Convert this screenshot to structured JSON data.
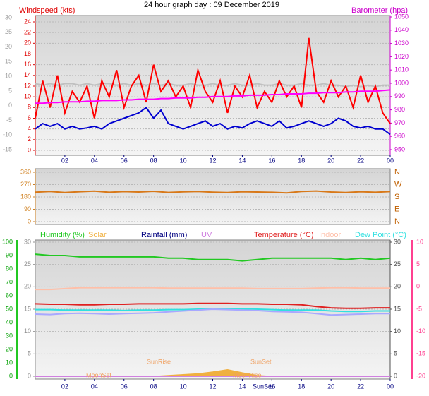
{
  "chart_data": [
    {
      "type": "line",
      "title": "24 hour graph day : 09 December 2019",
      "ylabel": "Windspeed (kts)",
      "y2label": "Barometer (hpa)",
      "x": [
        0,
        0.5,
        1,
        1.5,
        2,
        2.5,
        3,
        3.5,
        4,
        4.5,
        5,
        5.5,
        6,
        6.5,
        7,
        7.5,
        8,
        8.5,
        9,
        9.5,
        10,
        10.5,
        11,
        11.5,
        12,
        12.5,
        13,
        13.5,
        14,
        14.5,
        15,
        15.5,
        16,
        16.5,
        17,
        17.5,
        18,
        18.5,
        19,
        19.5,
        20,
        20.5,
        21,
        21.5,
        22,
        22.5,
        23,
        23.5,
        24
      ],
      "xlim": [
        0,
        24
      ],
      "xticks": [
        {
          "value": 2,
          "label": "02"
        },
        {
          "value": 4,
          "label": "04"
        },
        {
          "value": 6,
          "label": "06"
        },
        {
          "value": 8,
          "label": "08"
        },
        10,
        12,
        14,
        16,
        18,
        20,
        22,
        {
          "value": 24,
          "label": "00"
        }
      ],
      "ylim": [
        0,
        24
      ],
      "yticks": [
        0,
        2,
        4,
        6,
        8,
        10,
        12,
        14,
        16,
        18,
        20,
        22,
        24
      ],
      "y2lim": [
        950,
        1050
      ],
      "y2ticks": [
        950,
        960,
        970,
        980,
        990,
        1000,
        1010,
        1020,
        1030,
        1040,
        1050
      ],
      "y3lim": [
        -15,
        30
      ],
      "y3ticks": [
        -15,
        -10,
        -5,
        0,
        5,
        10,
        15,
        20,
        25,
        30
      ],
      "grid": true,
      "series": [
        {
          "color": "#c0c0c0",
          "axis": "y3",
          "values": [
            7.5,
            7,
            7.5,
            7,
            7.5,
            7.5,
            7,
            7.5,
            7,
            7.5,
            7.5,
            7,
            7.5,
            7,
            7.5,
            7,
            7.5,
            7,
            7.5,
            7,
            7,
            7.5,
            7,
            7,
            7.5,
            7,
            7,
            7.5,
            7,
            7,
            7.5,
            7,
            7,
            7.5,
            7,
            7,
            7.5,
            7,
            7,
            7.5,
            7,
            7,
            6.5,
            7,
            6.5,
            7,
            6.5,
            7,
            7
          ]
        },
        {
          "color": "#ff0000",
          "values": [
            6,
            13,
            8,
            14,
            7,
            11,
            9,
            12,
            6,
            13,
            10,
            15,
            8,
            12,
            14,
            9,
            16,
            11,
            13,
            10,
            12,
            8,
            15,
            11,
            9,
            13,
            7,
            12,
            10,
            14,
            8,
            11,
            9,
            13,
            10,
            12,
            8,
            21,
            11,
            9,
            13,
            10,
            12,
            8,
            14,
            9,
            12,
            7,
            5
          ]
        },
        {
          "color": "#ff00ff",
          "axis": "y2",
          "values": [
            985,
            985,
            985.5,
            985.5,
            986,
            986,
            986,
            986.5,
            986.5,
            987,
            987,
            987,
            987.5,
            987.5,
            988,
            988,
            988,
            988.5,
            988.5,
            989,
            989,
            989,
            989.5,
            989.5,
            990,
            990,
            990,
            990.5,
            990.5,
            991,
            991,
            991,
            991.5,
            991.5,
            992,
            992,
            992,
            992.5,
            992.5,
            993,
            993,
            993,
            993.5,
            993.5,
            994,
            994,
            994,
            994.5,
            995
          ]
        },
        {
          "color": "#0000d0",
          "values": [
            4,
            5,
            4.5,
            5,
            4,
            4.5,
            4,
            4.2,
            4.5,
            4,
            5,
            5.5,
            6,
            6.5,
            7,
            8,
            6,
            7.5,
            5,
            4.5,
            4,
            4.5,
            5,
            5.5,
            4.5,
            5,
            4,
            4.5,
            4.2,
            5,
            5.5,
            5,
            4.5,
            5.5,
            4.2,
            4.5,
            5,
            5.5,
            5,
            4.5,
            5,
            6,
            5.5,
            4.5,
            4.2,
            4.5,
            4,
            4,
            3
          ]
        }
      ]
    },
    {
      "type": "line",
      "x": [
        0,
        1,
        2,
        3,
        4,
        5,
        6,
        7,
        8,
        9,
        10,
        11,
        12,
        13,
        14,
        15,
        16,
        17,
        18,
        19,
        20,
        21,
        22,
        23,
        24
      ],
      "xlim": [
        0,
        24
      ],
      "ylim": [
        0,
        360
      ],
      "yticks": [
        0,
        90,
        180,
        270,
        360
      ],
      "y2lim": [
        0,
        360
      ],
      "y2ticks": [
        {
          "value": 0,
          "label": "N"
        },
        {
          "value": 90,
          "label": "E"
        },
        {
          "value": 180,
          "label": "S"
        },
        {
          "value": 270,
          "label": "W"
        },
        {
          "value": 360,
          "label": "N"
        }
      ],
      "grid": true,
      "series": [
        {
          "color": "#d87818",
          "values": [
            215,
            220,
            212,
            218,
            222,
            214,
            219,
            216,
            221,
            213,
            217,
            220,
            215,
            212,
            218,
            216,
            214,
            210,
            220,
            223,
            216,
            212,
            218,
            214,
            219
          ]
        }
      ]
    },
    {
      "type": "line",
      "x": [
        0,
        1,
        2,
        3,
        4,
        5,
        6,
        7,
        8,
        9,
        10,
        11,
        12,
        13,
        14,
        15,
        16,
        17,
        18,
        19,
        20,
        21,
        22,
        23,
        24
      ],
      "xlim": [
        0,
        24
      ],
      "xticks": [
        {
          "value": 2,
          "label": "02"
        },
        {
          "value": 4,
          "label": "04"
        },
        {
          "value": 6,
          "label": "06"
        },
        {
          "value": 8,
          "label": "08"
        },
        10,
        12,
        14,
        16,
        18,
        20,
        22,
        {
          "value": 24,
          "label": "00"
        }
      ],
      "ylim": [
        0,
        100
      ],
      "yticks": [
        0,
        10,
        20,
        30,
        40,
        50,
        60,
        70,
        80,
        90,
        100
      ],
      "y2lim": [
        0,
        30
      ],
      "y2ticks": [
        0,
        5,
        10,
        15,
        20,
        25,
        30
      ],
      "y3lim": [
        0,
        30
      ],
      "y3ticks": [
        0,
        5,
        10,
        15,
        20,
        25,
        30
      ],
      "y4lim": [
        -20,
        10
      ],
      "y4ticks": [
        -20,
        -15,
        -10,
        -5,
        0,
        5,
        10
      ],
      "grid": true,
      "annotations": [
        "SunRise",
        "SunSet",
        "MoonSet",
        "MoonRise",
        "SunSet"
      ],
      "series": [
        {
          "name": "Humidity (%)",
          "color": "#22c822",
          "values": [
            91,
            90,
            90,
            89,
            89,
            89,
            89,
            89,
            89,
            88,
            88,
            87,
            87,
            87,
            86,
            87,
            88,
            88,
            88,
            88,
            88,
            87,
            88,
            87,
            88
          ]
        },
        {
          "name": "Solar",
          "color": "#f0b040",
          "axis": "y3",
          "area": true,
          "values": [
            0,
            0,
            0,
            0,
            0,
            0,
            0,
            0,
            0,
            0.2,
            0.4,
            0.6,
            1,
            1.5,
            0.8,
            0.2,
            0,
            0,
            0,
            0,
            0,
            0,
            0,
            0,
            0
          ]
        },
        {
          "name": "Rainfall (mm)",
          "color": "#000080",
          "axis": "y2",
          "values": [
            0,
            0,
            0,
            0,
            0,
            0,
            0,
            0,
            0,
            0,
            0,
            0,
            0,
            0,
            0,
            0,
            0,
            0,
            0,
            0,
            0,
            0,
            0,
            0,
            0
          ]
        },
        {
          "name": "UV",
          "color": "#d080e0",
          "axis": "y2",
          "values": [
            0,
            0,
            0,
            0,
            0,
            0,
            0,
            0,
            0,
            0,
            0,
            0,
            0,
            0,
            0,
            0,
            0,
            0,
            0,
            0,
            0,
            0,
            0,
            0,
            0
          ]
        },
        {
          "name": "Temperature (°C)",
          "color": "#e02020",
          "axis": "y3",
          "values": [
            16.2,
            16.1,
            16.1,
            16,
            16,
            16.1,
            16.1,
            16.2,
            16.2,
            16.2,
            16.2,
            16.3,
            16.3,
            16.3,
            16.2,
            16.2,
            16.1,
            16.1,
            16,
            15.6,
            15.3,
            15.2,
            15.2,
            15.3,
            15.3
          ]
        },
        {
          "name": "Indoor",
          "color": "#ffbfa8",
          "axis": "y3",
          "values": [
            19.4,
            19.4,
            19.6,
            19.8,
            19.8,
            19.8,
            19.8,
            19.8,
            19.8,
            19.7,
            19.7,
            19.7,
            19.7,
            19.7,
            19.7,
            19.6,
            19.6,
            19.6,
            19.6,
            19.7,
            19.8,
            19.8,
            19.7,
            19.7,
            19.7
          ]
        },
        {
          "name": "Dew Point (°C)",
          "color": "#30e0e0",
          "axis": "y3",
          "values": [
            14.9,
            14.9,
            14.8,
            14.8,
            14.8,
            14.8,
            14.7,
            14.8,
            14.8,
            14.9,
            14.9,
            15,
            15,
            15.1,
            15.1,
            15,
            14.9,
            14.8,
            14.8,
            14.8,
            14.6,
            14.5,
            14.5,
            14.6,
            14.6
          ]
        },
        {
          "color": "#a8a8ff",
          "axis": "y3",
          "values": [
            13.9,
            13.8,
            14,
            14.1,
            14,
            13.9,
            14,
            14.1,
            14.2,
            14.4,
            14.6,
            14.8,
            15,
            14.9,
            14.8,
            14.7,
            14.5,
            14.4,
            14.3,
            14,
            13.7,
            13.8,
            13.9,
            14,
            14
          ]
        }
      ]
    }
  ]
}
